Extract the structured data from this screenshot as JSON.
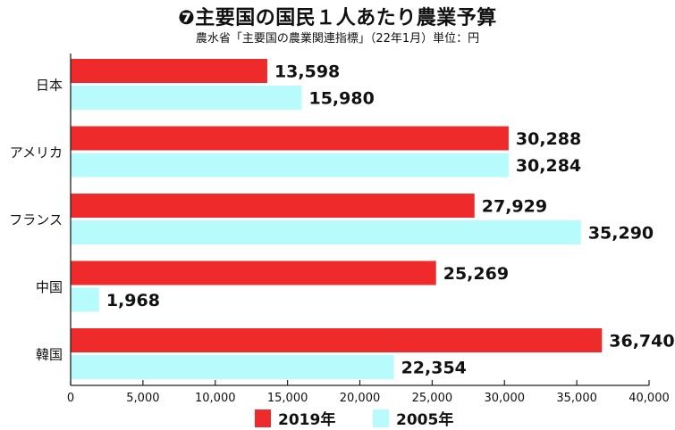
{
  "header": {
    "title": "❼主要国の国民１人あたり農業予算",
    "source": "農水省「主要国の農業関連指標」（22年1月）単位：円"
  },
  "chart_data": {
    "type": "bar",
    "orientation": "horizontal",
    "categories": [
      "日本",
      "アメリカ",
      "フランス",
      "中国",
      "韓国"
    ],
    "series": [
      {
        "name": "2019年",
        "color": "#ee2a2a",
        "values": [
          13598,
          30288,
          27929,
          25269,
          36740
        ]
      },
      {
        "name": "2005年",
        "color": "#b8fbfd",
        "values": [
          15980,
          30284,
          35290,
          1968,
          22354
        ]
      }
    ],
    "value_labels": [
      [
        "13,598",
        "30,288",
        "27,929",
        "25,269",
        "36,740"
      ],
      [
        "15,980",
        "30,284",
        "35,290",
        "1,968",
        "22,354"
      ]
    ],
    "xlim": [
      0,
      40000
    ],
    "xticks": [
      0,
      5000,
      10000,
      15000,
      20000,
      25000,
      30000,
      35000,
      40000
    ],
    "xtick_labels": [
      "0",
      "5,000",
      "10,000",
      "15,000",
      "20,000",
      "25,000",
      "30,000",
      "35,000",
      "40,000"
    ],
    "legend_position": "bottom",
    "grid": false
  }
}
